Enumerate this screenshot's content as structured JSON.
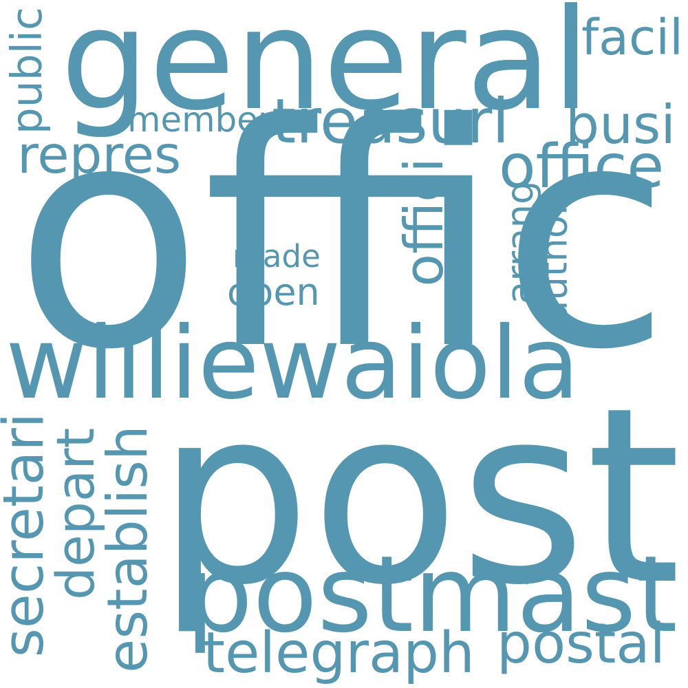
{
  "word_color": "#5597b0",
  "words": [
    {
      "text": "offic",
      "orientation": "horizontal"
    },
    {
      "text": "post",
      "orientation": "horizontal"
    },
    {
      "text": "general",
      "orientation": "horizontal"
    },
    {
      "text": "williewaiola",
      "orientation": "horizontal"
    },
    {
      "text": "postmast",
      "orientation": "horizontal"
    },
    {
      "text": "telegraph",
      "orientation": "horizontal"
    },
    {
      "text": "postal",
      "orientation": "horizontal"
    },
    {
      "text": "treasuri",
      "orientation": "horizontal"
    },
    {
      "text": "busi",
      "orientation": "horizontal"
    },
    {
      "text": "office",
      "orientation": "horizontal"
    },
    {
      "text": "repres",
      "orientation": "horizontal"
    },
    {
      "text": "member",
      "orientation": "horizontal"
    },
    {
      "text": "facil",
      "orientation": "horizontal"
    },
    {
      "text": "made",
      "orientation": "horizontal"
    },
    {
      "text": "open",
      "orientation": "horizontal"
    },
    {
      "text": "public",
      "orientation": "vertical"
    },
    {
      "text": "offici",
      "orientation": "vertical"
    },
    {
      "text": "arrang",
      "orientation": "vertical"
    },
    {
      "text": "author",
      "orientation": "vertical"
    },
    {
      "text": "secretari",
      "orientation": "vertical"
    },
    {
      "text": "depart",
      "orientation": "vertical"
    },
    {
      "text": "establish",
      "orientation": "vertical"
    }
  ]
}
